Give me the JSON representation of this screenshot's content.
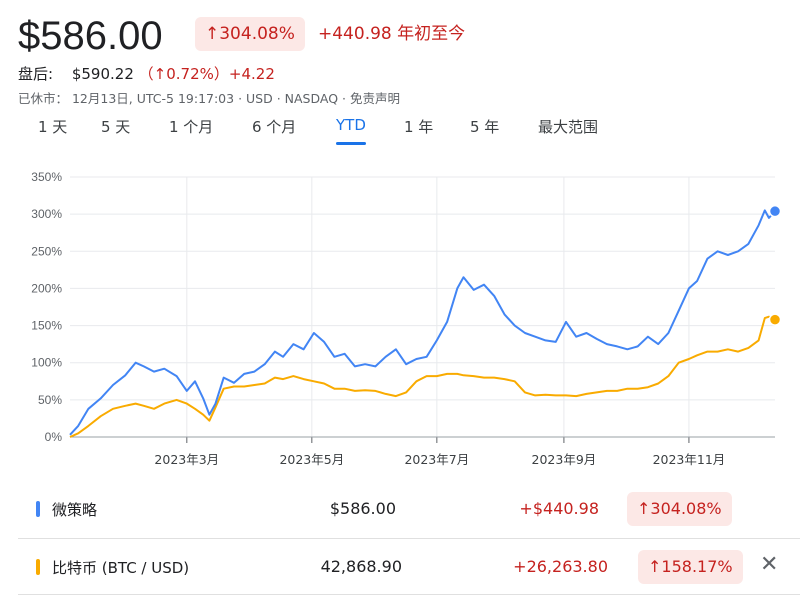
{
  "header": {
    "price": "$586.00",
    "badge": "↑304.08%",
    "change": "+440.98 年初至今",
    "after_label": "盘后:",
    "after_price": "$590.22",
    "after_pct": "（↑0.72%）",
    "after_change": "+4.22",
    "meta": "已休市：  12月13日, UTC-5 19:17:03 · USD · NASDAQ · 免责声明"
  },
  "tabs": [
    {
      "label": "1 天"
    },
    {
      "label": "5 天"
    },
    {
      "label": "1 个月"
    },
    {
      "label": "6 个月"
    },
    {
      "label": "YTD",
      "active": true
    },
    {
      "label": "1 年"
    },
    {
      "label": "5 年"
    },
    {
      "label": "最大范围"
    }
  ],
  "colors": {
    "mstr": "#4285f4",
    "btc": "#f9ab00",
    "red": "#c5221f"
  },
  "chart_data": {
    "type": "line",
    "ylim": [
      0,
      350
    ],
    "yticks": [
      "0%",
      "50%",
      "100%",
      "150%",
      "200%",
      "250%",
      "300%",
      "350%"
    ],
    "yticks_values": [
      0,
      50,
      100,
      150,
      200,
      250,
      300,
      350
    ],
    "xtick_labels": [
      "2023年3月",
      "2023年5月",
      "2023年7月",
      "2023年9月",
      "2023年11月"
    ],
    "xtick_dates": [
      "2023-03-01",
      "2023-05-01",
      "2023-07-01",
      "2023-09-01",
      "2023-11-01"
    ],
    "x_range": [
      "2023-01-03",
      "2023-12-13"
    ],
    "grid": true,
    "series": [
      {
        "name": "微策略",
        "color": "#4285f4",
        "x": [
          "2023-01-03",
          "2023-01-07",
          "2023-01-12",
          "2023-01-18",
          "2023-01-24",
          "2023-01-30",
          "2023-02-04",
          "2023-02-08",
          "2023-02-13",
          "2023-02-18",
          "2023-02-24",
          "2023-03-01",
          "2023-03-05",
          "2023-03-09",
          "2023-03-12",
          "2023-03-15",
          "2023-03-19",
          "2023-03-24",
          "2023-03-29",
          "2023-04-03",
          "2023-04-08",
          "2023-04-13",
          "2023-04-17",
          "2023-04-22",
          "2023-04-27",
          "2023-05-02",
          "2023-05-07",
          "2023-05-12",
          "2023-05-17",
          "2023-05-22",
          "2023-05-27",
          "2023-06-01",
          "2023-06-06",
          "2023-06-11",
          "2023-06-16",
          "2023-06-21",
          "2023-06-26",
          "2023-07-01",
          "2023-07-06",
          "2023-07-11",
          "2023-07-14",
          "2023-07-19",
          "2023-07-24",
          "2023-07-29",
          "2023-08-03",
          "2023-08-08",
          "2023-08-13",
          "2023-08-18",
          "2023-08-23",
          "2023-08-28",
          "2023-09-02",
          "2023-09-07",
          "2023-09-12",
          "2023-09-17",
          "2023-09-22",
          "2023-09-27",
          "2023-10-02",
          "2023-10-07",
          "2023-10-12",
          "2023-10-17",
          "2023-10-22",
          "2023-10-27",
          "2023-11-01",
          "2023-11-05",
          "2023-11-10",
          "2023-11-15",
          "2023-11-20",
          "2023-11-25",
          "2023-11-30",
          "2023-12-05",
          "2023-12-08",
          "2023-12-10",
          "2023-12-13"
        ],
        "values": [
          3,
          15,
          38,
          52,
          70,
          83,
          100,
          95,
          88,
          92,
          82,
          62,
          75,
          52,
          30,
          45,
          80,
          73,
          85,
          88,
          98,
          115,
          108,
          125,
          118,
          140,
          128,
          108,
          112,
          95,
          98,
          95,
          108,
          118,
          98,
          105,
          108,
          130,
          155,
          200,
          215,
          198,
          205,
          190,
          165,
          150,
          140,
          135,
          130,
          128,
          155,
          135,
          140,
          132,
          125,
          122,
          118,
          122,
          135,
          125,
          140,
          170,
          200,
          210,
          240,
          250,
          245,
          250,
          260,
          285,
          305,
          295,
          304
        ]
      },
      {
        "name": "比特币 (BTC / USD)",
        "color": "#f9ab00",
        "x": [
          "2023-01-03",
          "2023-01-07",
          "2023-01-12",
          "2023-01-18",
          "2023-01-24",
          "2023-01-30",
          "2023-02-04",
          "2023-02-08",
          "2023-02-13",
          "2023-02-18",
          "2023-02-24",
          "2023-03-01",
          "2023-03-05",
          "2023-03-09",
          "2023-03-12",
          "2023-03-15",
          "2023-03-19",
          "2023-03-24",
          "2023-03-29",
          "2023-04-03",
          "2023-04-08",
          "2023-04-13",
          "2023-04-17",
          "2023-04-22",
          "2023-04-27",
          "2023-05-02",
          "2023-05-07",
          "2023-05-12",
          "2023-05-17",
          "2023-05-22",
          "2023-05-27",
          "2023-06-01",
          "2023-06-06",
          "2023-06-11",
          "2023-06-16",
          "2023-06-21",
          "2023-06-26",
          "2023-07-01",
          "2023-07-06",
          "2023-07-11",
          "2023-07-14",
          "2023-07-19",
          "2023-07-24",
          "2023-07-29",
          "2023-08-03",
          "2023-08-08",
          "2023-08-13",
          "2023-08-18",
          "2023-08-23",
          "2023-08-28",
          "2023-09-02",
          "2023-09-07",
          "2023-09-12",
          "2023-09-17",
          "2023-09-22",
          "2023-09-27",
          "2023-10-02",
          "2023-10-07",
          "2023-10-12",
          "2023-10-17",
          "2023-10-22",
          "2023-10-27",
          "2023-11-01",
          "2023-11-05",
          "2023-11-10",
          "2023-11-15",
          "2023-11-20",
          "2023-11-25",
          "2023-11-30",
          "2023-12-05",
          "2023-12-08",
          "2023-12-10",
          "2023-12-13"
        ],
        "values": [
          0,
          5,
          15,
          28,
          38,
          42,
          45,
          42,
          38,
          45,
          50,
          45,
          38,
          30,
          22,
          40,
          65,
          68,
          68,
          70,
          72,
          80,
          78,
          82,
          78,
          75,
          72,
          65,
          65,
          62,
          63,
          62,
          58,
          55,
          60,
          75,
          82,
          82,
          85,
          85,
          83,
          82,
          80,
          80,
          78,
          75,
          60,
          56,
          57,
          56,
          56,
          55,
          58,
          60,
          62,
          62,
          65,
          65,
          67,
          72,
          82,
          100,
          105,
          110,
          115,
          115,
          118,
          115,
          120,
          130,
          160,
          162,
          158
        ]
      }
    ]
  },
  "rows": [
    {
      "name": "微策略",
      "price": "$586.00",
      "change": "+$440.98",
      "badge": "↑304.08%",
      "color": "#4285f4"
    },
    {
      "name": "比特币 (BTC / USD)",
      "price": "42,868.90",
      "change": "+26,263.80",
      "badge": "↑158.17%",
      "color": "#f9ab00",
      "close": "✕"
    }
  ]
}
